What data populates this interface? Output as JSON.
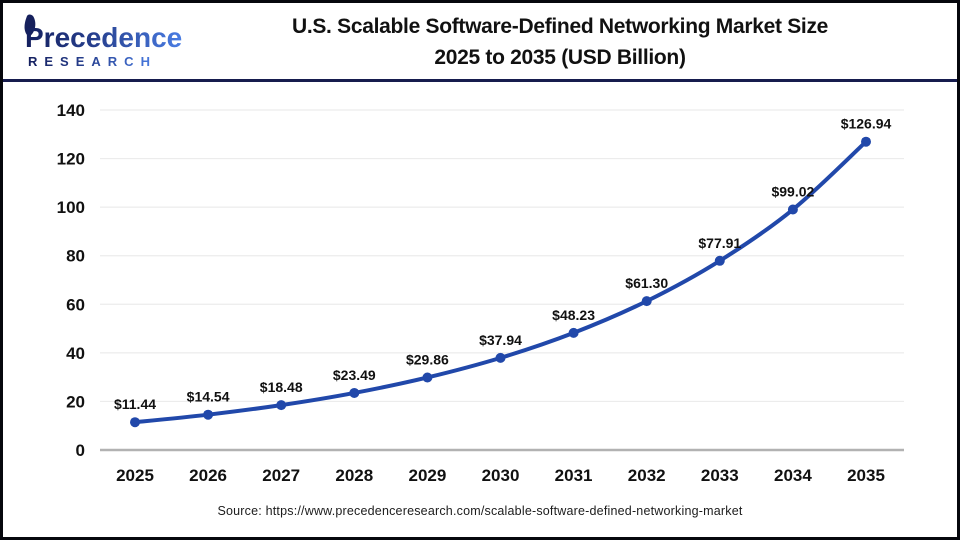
{
  "header": {
    "logo": {
      "brand": "Precedence",
      "sub": "RESEARCH",
      "navy": "#1b2766",
      "blue": "#4577dd"
    },
    "title_line1": "U.S. Scalable Software-Defined Networking Market Size",
    "title_line2": "2025 to 2035 (USD Billion)"
  },
  "chart_data": {
    "type": "line",
    "title": "U.S. Scalable Software-Defined Networking Market Size 2025 to 2035 (USD Billion)",
    "series_name": "U.S. Scalable Software-Defined Networking Market Size (USD Billion)",
    "categories": [
      "2025",
      "2026",
      "2027",
      "2028",
      "2029",
      "2030",
      "2031",
      "2032",
      "2033",
      "2034",
      "2035"
    ],
    "values": [
      11.44,
      14.54,
      18.48,
      23.49,
      29.86,
      37.94,
      48.23,
      61.3,
      77.91,
      99.02,
      126.94
    ],
    "point_labels": [
      "$11.44",
      "$14.54",
      "$18.48",
      "$23.49",
      "$29.86",
      "$37.94",
      "$48.23",
      "$61.30",
      "$77.91",
      "$99.02",
      "$126.94"
    ],
    "xlabel": "",
    "ylabel": "",
    "ylim": [
      0,
      140
    ],
    "ytick_step": 20,
    "grid": true,
    "legend": "none",
    "line_color": "#2148aa",
    "gridline_color": "#ececec",
    "axis_line_color": "#b2b2b2"
  },
  "footer": {
    "source": "Source: https://www.precedenceresearch.com/scalable-software-defined-networking-market"
  }
}
